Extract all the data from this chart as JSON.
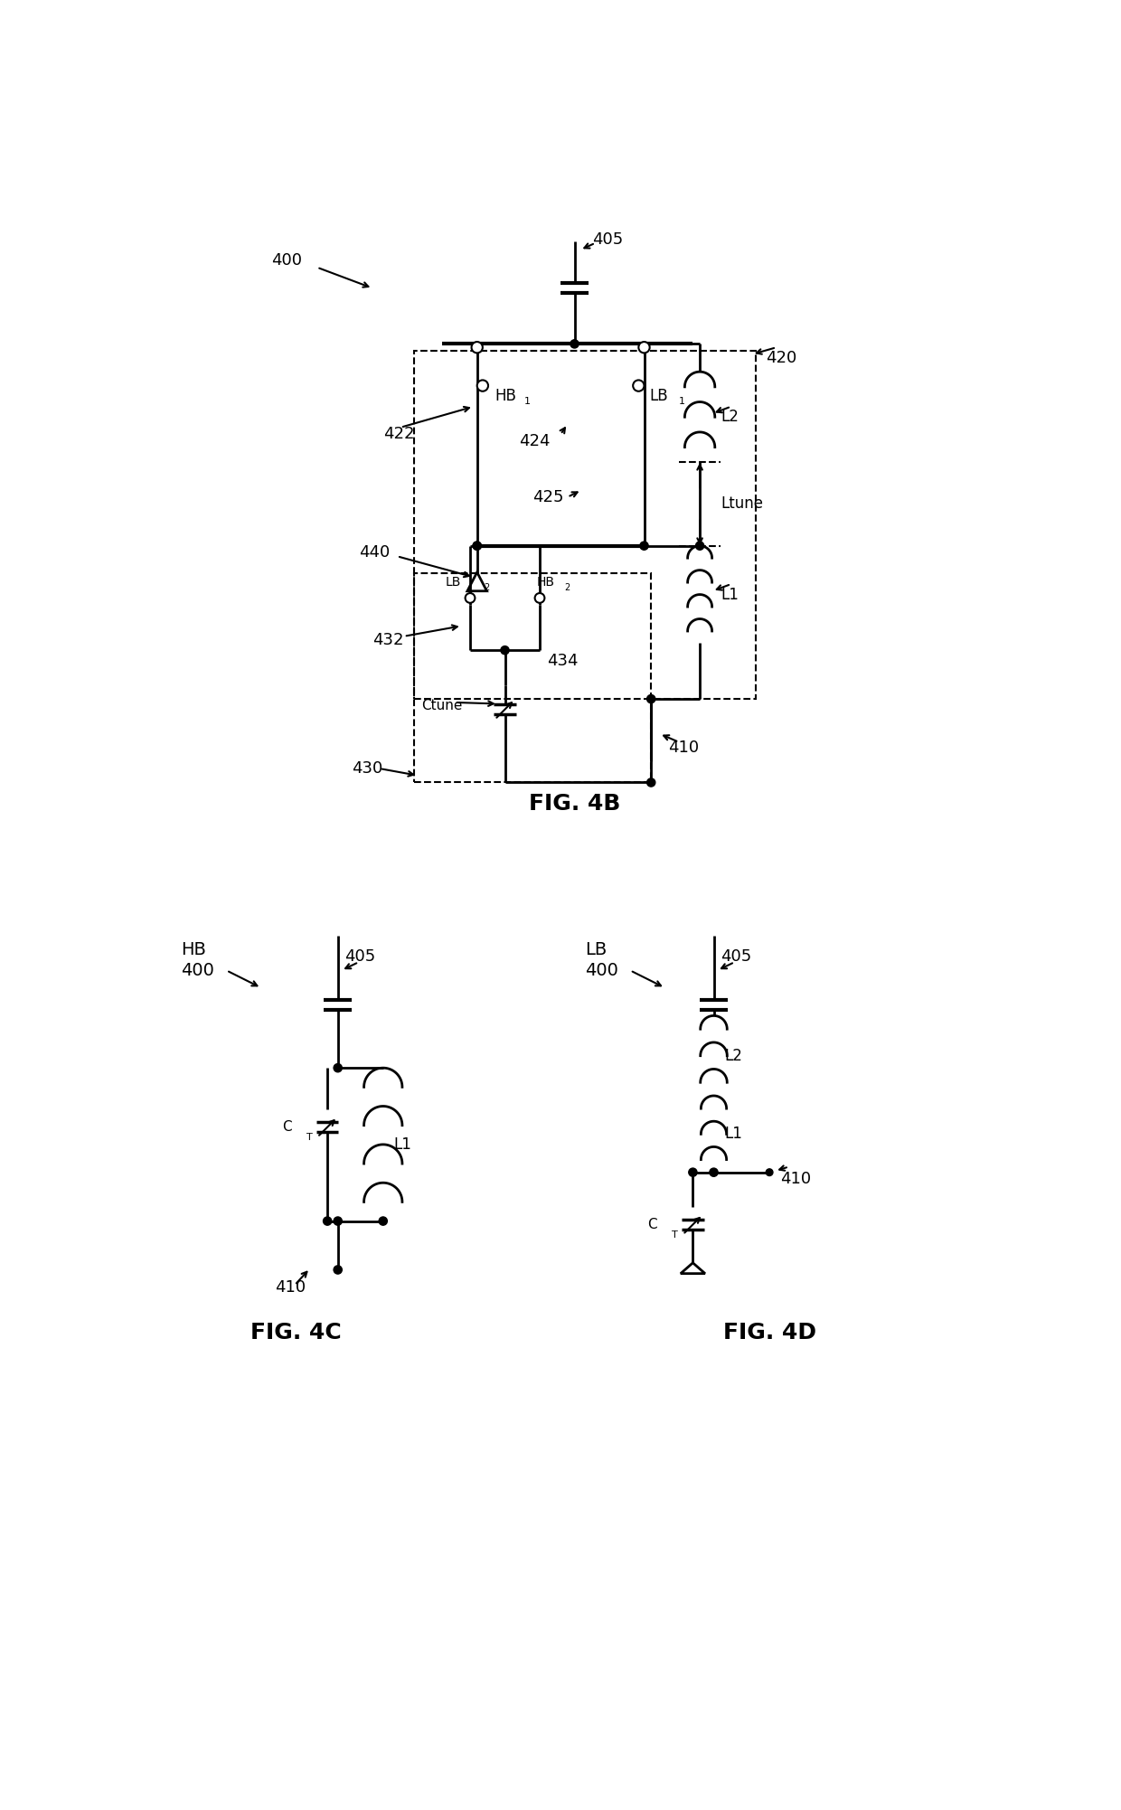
{
  "fig_width": 12.4,
  "fig_height": 20.02,
  "background_color": "#ffffff",
  "line_color": "#000000",
  "lw": 2.0,
  "dlw": 1.5,
  "title_4b": "FIG. 4B",
  "title_4c": "FIG. 4C",
  "title_4d": "FIG. 4D"
}
